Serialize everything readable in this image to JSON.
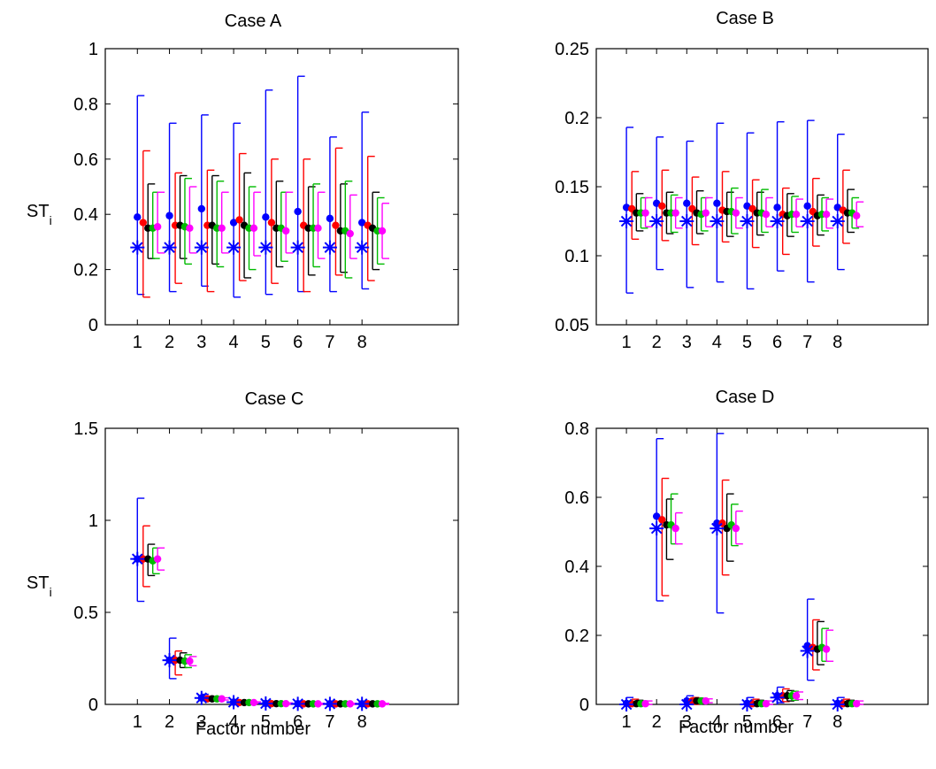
{
  "colors": {
    "m1": "#0000ff",
    "m2": "#ff0000",
    "m3": "#000000",
    "m4": "#00bb00",
    "m5": "#ff00ff"
  },
  "chart_data": [
    {
      "type": "scatter",
      "title": "Case A",
      "xlabel": "",
      "ylabel": "ST",
      "ylabel_subscript": "i",
      "xlim": [
        0,
        11
      ],
      "ylim": [
        0,
        1
      ],
      "x_ticks": [
        1,
        2,
        3,
        4,
        5,
        6,
        7,
        8
      ],
      "y_ticks": [
        0,
        0.2,
        0.4,
        0.6,
        0.8,
        1
      ],
      "y_tick_labels": [
        "0",
        "0.2",
        "0.4",
        "0.6",
        "0.8",
        "1"
      ],
      "grid": false,
      "reference_values": [
        0.28,
        0.28,
        0.28,
        0.28,
        0.28,
        0.28,
        0.28,
        0.28
      ],
      "series": [
        {
          "offset": 0.0,
          "mean": [
            0.39,
            0.395,
            0.42,
            0.37,
            0.39,
            0.41,
            0.385,
            0.37
          ],
          "lower": [
            0.11,
            0.12,
            0.14,
            0.1,
            0.11,
            0.12,
            0.12,
            0.13
          ],
          "upper": [
            0.83,
            0.73,
            0.76,
            0.73,
            0.85,
            0.9,
            0.68,
            0.77
          ]
        },
        {
          "offset": 0.18,
          "mean": [
            0.37,
            0.36,
            0.36,
            0.38,
            0.37,
            0.36,
            0.36,
            0.36
          ],
          "lower": [
            0.1,
            0.15,
            0.12,
            0.16,
            0.15,
            0.12,
            0.18,
            0.16
          ],
          "upper": [
            0.63,
            0.55,
            0.56,
            0.62,
            0.6,
            0.6,
            0.64,
            0.61
          ]
        },
        {
          "offset": 0.33,
          "mean": [
            0.35,
            0.36,
            0.36,
            0.36,
            0.35,
            0.35,
            0.34,
            0.35
          ],
          "lower": [
            0.24,
            0.24,
            0.22,
            0.17,
            0.21,
            0.18,
            0.19,
            0.2
          ],
          "upper": [
            0.51,
            0.54,
            0.54,
            0.55,
            0.52,
            0.5,
            0.51,
            0.48
          ]
        },
        {
          "offset": 0.48,
          "mean": [
            0.35,
            0.355,
            0.35,
            0.35,
            0.35,
            0.35,
            0.34,
            0.34
          ],
          "lower": [
            0.24,
            0.22,
            0.21,
            0.2,
            0.23,
            0.21,
            0.17,
            0.22
          ],
          "upper": [
            0.48,
            0.53,
            0.52,
            0.5,
            0.48,
            0.51,
            0.52,
            0.46
          ]
        },
        {
          "offset": 0.63,
          "mean": [
            0.355,
            0.35,
            0.35,
            0.35,
            0.34,
            0.35,
            0.33,
            0.34
          ],
          "lower": [
            0.26,
            0.26,
            0.26,
            0.25,
            0.26,
            0.24,
            0.24,
            0.24
          ],
          "upper": [
            0.48,
            0.5,
            0.48,
            0.48,
            0.48,
            0.48,
            0.47,
            0.44
          ]
        }
      ]
    },
    {
      "type": "scatter",
      "title": "Case B",
      "xlabel": "",
      "ylabel": "",
      "xlim": [
        0,
        11
      ],
      "ylim": [
        0.05,
        0.25
      ],
      "x_ticks": [
        1,
        2,
        3,
        4,
        5,
        6,
        7,
        8
      ],
      "y_ticks": [
        0.05,
        0.1,
        0.15,
        0.2,
        0.25
      ],
      "y_tick_labels": [
        "0.05",
        "0.1",
        "0.15",
        "0.2",
        "0.25"
      ],
      "grid": false,
      "reference_values": [
        0.125,
        0.125,
        0.125,
        0.125,
        0.125,
        0.125,
        0.125,
        0.125
      ],
      "series": [
        {
          "offset": 0.0,
          "mean": [
            0.135,
            0.138,
            0.138,
            0.138,
            0.136,
            0.135,
            0.136,
            0.135
          ],
          "lower": [
            0.073,
            0.09,
            0.077,
            0.081,
            0.076,
            0.089,
            0.081,
            0.09
          ],
          "upper": [
            0.193,
            0.186,
            0.183,
            0.196,
            0.189,
            0.197,
            0.198,
            0.188
          ]
        },
        {
          "offset": 0.18,
          "mean": [
            0.134,
            0.136,
            0.134,
            0.133,
            0.134,
            0.13,
            0.132,
            0.133
          ],
          "lower": [
            0.112,
            0.111,
            0.108,
            0.11,
            0.106,
            0.101,
            0.107,
            0.109
          ],
          "upper": [
            0.161,
            0.162,
            0.157,
            0.161,
            0.155,
            0.149,
            0.156,
            0.162
          ]
        },
        {
          "offset": 0.33,
          "mean": [
            0.131,
            0.131,
            0.131,
            0.132,
            0.131,
            0.129,
            0.129,
            0.131
          ],
          "lower": [
            0.118,
            0.116,
            0.116,
            0.114,
            0.115,
            0.114,
            0.115,
            0.117
          ],
          "upper": [
            0.145,
            0.146,
            0.147,
            0.146,
            0.146,
            0.145,
            0.144,
            0.148
          ]
        },
        {
          "offset": 0.48,
          "mean": [
            0.131,
            0.131,
            0.13,
            0.132,
            0.131,
            0.13,
            0.13,
            0.131
          ],
          "lower": [
            0.12,
            0.117,
            0.118,
            0.116,
            0.117,
            0.117,
            0.118,
            0.12
          ],
          "upper": [
            0.142,
            0.144,
            0.142,
            0.149,
            0.148,
            0.143,
            0.142,
            0.142
          ]
        },
        {
          "offset": 0.63,
          "mean": [
            0.131,
            0.131,
            0.131,
            0.131,
            0.13,
            0.13,
            0.13,
            0.129
          ],
          "lower": [
            0.121,
            0.12,
            0.121,
            0.12,
            0.121,
            0.121,
            0.12,
            0.121
          ],
          "upper": [
            0.142,
            0.142,
            0.142,
            0.142,
            0.142,
            0.141,
            0.141,
            0.139
          ]
        }
      ]
    },
    {
      "type": "scatter",
      "title": "Case C",
      "xlabel": "Factor number",
      "ylabel": "ST",
      "ylabel_subscript": "i",
      "xlim": [
        0,
        11
      ],
      "ylim": [
        0,
        1.5
      ],
      "x_ticks": [
        1,
        2,
        3,
        4,
        5,
        6,
        7,
        8
      ],
      "y_ticks": [
        0,
        0.5,
        1,
        1.5
      ],
      "y_tick_labels": [
        "0",
        "0.5",
        "1",
        "1.5"
      ],
      "grid": false,
      "reference_values": [
        0.79,
        0.24,
        0.035,
        0.012,
        0.005,
        0.003,
        0.003,
        0.003
      ],
      "series": [
        {
          "offset": 0.0,
          "mean": [
            0.79,
            0.24,
            0.035,
            0.012,
            0.005,
            0.004,
            0.003,
            0.003
          ],
          "lower": [
            0.56,
            0.14,
            0.02,
            0.005,
            0.001,
            0.0,
            0.0,
            0.0
          ],
          "upper": [
            1.12,
            0.36,
            0.055,
            0.025,
            0.012,
            0.01,
            0.01,
            0.01
          ]
        },
        {
          "offset": 0.18,
          "mean": [
            0.79,
            0.24,
            0.03,
            0.01,
            0.004,
            0.003,
            0.003,
            0.003
          ],
          "lower": [
            0.64,
            0.16,
            0.02,
            0.005,
            0.001,
            0.0,
            0.0,
            0.0
          ],
          "upper": [
            0.97,
            0.29,
            0.045,
            0.02,
            0.01,
            0.008,
            0.008,
            0.008
          ]
        },
        {
          "offset": 0.33,
          "mean": [
            0.79,
            0.24,
            0.03,
            0.01,
            0.004,
            0.003,
            0.003,
            0.003
          ],
          "lower": [
            0.7,
            0.2,
            0.022,
            0.006,
            0.001,
            0.0,
            0.0,
            0.0
          ],
          "upper": [
            0.87,
            0.28,
            0.04,
            0.016,
            0.008,
            0.006,
            0.006,
            0.006
          ]
        },
        {
          "offset": 0.48,
          "mean": [
            0.78,
            0.235,
            0.03,
            0.01,
            0.004,
            0.003,
            0.003,
            0.003
          ],
          "lower": [
            0.71,
            0.2,
            0.022,
            0.006,
            0.001,
            0.0,
            0.0,
            0.0
          ],
          "upper": [
            0.85,
            0.27,
            0.038,
            0.015,
            0.008,
            0.006,
            0.006,
            0.006
          ]
        },
        {
          "offset": 0.63,
          "mean": [
            0.79,
            0.235,
            0.03,
            0.01,
            0.004,
            0.003,
            0.003,
            0.003
          ],
          "lower": [
            0.73,
            0.21,
            0.024,
            0.007,
            0.001,
            0.0,
            0.0,
            0.0
          ],
          "upper": [
            0.85,
            0.26,
            0.036,
            0.014,
            0.008,
            0.006,
            0.006,
            0.006
          ]
        }
      ]
    },
    {
      "type": "scatter",
      "title": "Case D",
      "xlabel": "Factor number",
      "ylabel": "",
      "xlim": [
        0,
        11
      ],
      "ylim": [
        0,
        0.8
      ],
      "x_ticks": [
        1,
        2,
        3,
        4,
        5,
        6,
        7,
        8
      ],
      "y_ticks": [
        0,
        0.2,
        0.4,
        0.6,
        0.8
      ],
      "y_tick_labels": [
        "0",
        "0.2",
        "0.4",
        "0.6",
        "0.8"
      ],
      "grid": false,
      "reference_values": [
        0.0,
        0.51,
        0.0,
        0.51,
        0.0,
        0.02,
        0.155,
        0.0
      ],
      "series": [
        {
          "offset": 0.0,
          "mean": [
            0.003,
            0.545,
            0.01,
            0.525,
            0.003,
            0.025,
            0.17,
            0.003
          ],
          "lower": [
            0.0,
            0.3,
            0.0,
            0.265,
            0.0,
            0.005,
            0.07,
            0.0
          ],
          "upper": [
            0.02,
            0.77,
            0.025,
            0.785,
            0.02,
            0.05,
            0.305,
            0.02
          ]
        },
        {
          "offset": 0.18,
          "mean": [
            0.002,
            0.535,
            0.01,
            0.525,
            0.002,
            0.025,
            0.165,
            0.002
          ],
          "lower": [
            0.0,
            0.315,
            0.0,
            0.375,
            0.0,
            0.008,
            0.1,
            0.0
          ],
          "upper": [
            0.015,
            0.655,
            0.02,
            0.65,
            0.015,
            0.045,
            0.245,
            0.015
          ]
        },
        {
          "offset": 0.33,
          "mean": [
            0.002,
            0.52,
            0.01,
            0.51,
            0.002,
            0.025,
            0.16,
            0.002
          ],
          "lower": [
            0.0,
            0.42,
            0.003,
            0.415,
            0.0,
            0.01,
            0.115,
            0.0
          ],
          "upper": [
            0.012,
            0.595,
            0.018,
            0.61,
            0.012,
            0.04,
            0.24,
            0.012
          ]
        },
        {
          "offset": 0.48,
          "mean": [
            0.002,
            0.52,
            0.01,
            0.52,
            0.002,
            0.025,
            0.165,
            0.002
          ],
          "lower": [
            0.0,
            0.465,
            0.004,
            0.46,
            0.0,
            0.012,
            0.125,
            0.0
          ],
          "upper": [
            0.01,
            0.61,
            0.016,
            0.58,
            0.01,
            0.038,
            0.22,
            0.01
          ]
        },
        {
          "offset": 0.63,
          "mean": [
            0.002,
            0.51,
            0.01,
            0.51,
            0.002,
            0.025,
            0.16,
            0.002
          ],
          "lower": [
            0.0,
            0.465,
            0.005,
            0.465,
            0.0,
            0.014,
            0.125,
            0.0
          ],
          "upper": [
            0.01,
            0.555,
            0.016,
            0.56,
            0.01,
            0.036,
            0.215,
            0.01
          ]
        }
      ]
    }
  ]
}
